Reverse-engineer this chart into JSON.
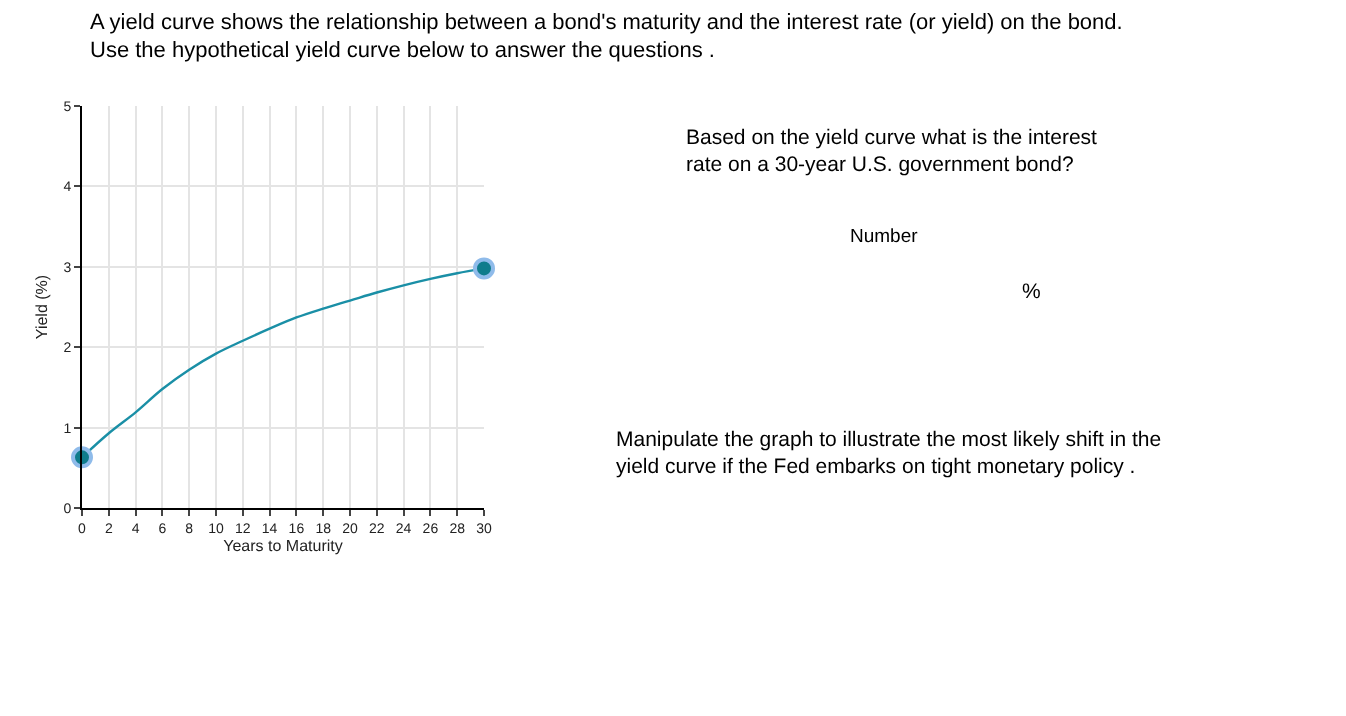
{
  "chart_data": {
    "type": "line",
    "title": "A yield curve shows the relationship between a bond's maturity and the interest rate (or yield) on the bond.\nUse the hypothetical yield curve below to answer the questions .",
    "xlabel": "Years to Maturity",
    "ylabel": "Yield (%)",
    "series": [
      {
        "color": "#1a8fa6",
        "x": [
          0,
          2,
          4,
          6,
          8,
          10,
          12,
          14,
          16,
          18,
          20,
          22,
          24,
          26,
          28,
          30
        ],
        "values": [
          0.63,
          0.93,
          1.19,
          1.48,
          1.72,
          1.92,
          2.08,
          2.23,
          2.37,
          2.48,
          2.58,
          2.68,
          2.77,
          2.85,
          2.92,
          2.98
        ],
        "marker": "none"
      },
      {
        "type": "scatter",
        "color": "#0f7c8c",
        "x": [
          0,
          30
        ],
        "values": [
          0.63,
          2.98
        ],
        "marker": "circle"
      }
    ],
    "xlim": [
      0,
      30
    ],
    "xticks": [
      0,
      2,
      4,
      6,
      8,
      10,
      12,
      14,
      16,
      18,
      20,
      22,
      24,
      26,
      28,
      30
    ],
    "ylim": [
      0,
      5
    ],
    "yticks": [
      0,
      1,
      2,
      3,
      4,
      5
    ],
    "grid": true,
    "annotations": [
      "Based on the yield curve what is the interest\nrate on a 30-year U.S. government bond?",
      "Number",
      "%",
      "Manipulate the graph to illustrate the most likely shift in the\nyield curve if the Fed embarks on tight monetary policy ."
    ]
  }
}
